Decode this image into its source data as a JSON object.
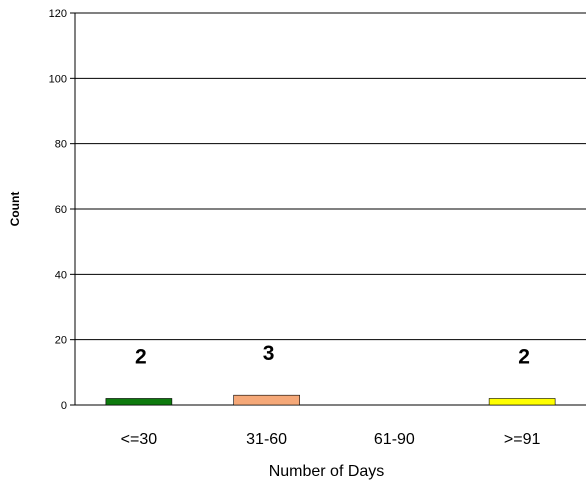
{
  "chart_data": {
    "type": "bar",
    "xlabel": "Number of Days",
    "ylabel": "Count",
    "categories": [
      "<=30",
      "31-60",
      "61-90",
      ">=91"
    ],
    "values": [
      2,
      3,
      0,
      2
    ],
    "data_labels": [
      "2",
      "3",
      "",
      "2"
    ],
    "bar_colors": [
      "#0e7a0e",
      "#f5a878",
      "#cccccc",
      "#ffff00"
    ],
    "ylim": [
      0,
      120
    ],
    "yticks": [
      0,
      20,
      40,
      60,
      80,
      100,
      120
    ],
    "grid": true
  }
}
